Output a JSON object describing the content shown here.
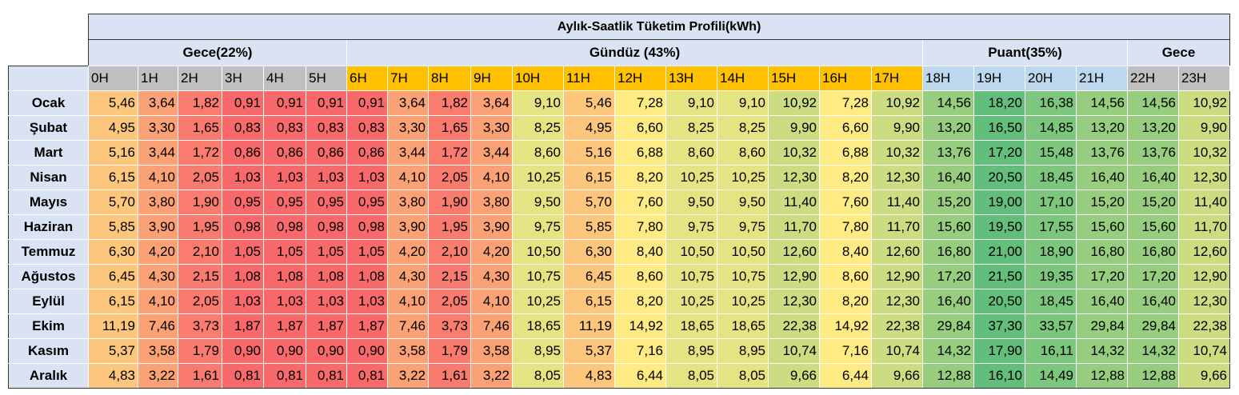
{
  "table": {
    "title": "Aylık-Saatlik Tüketim Profili(kWh)",
    "groups": [
      "Gece(22%)",
      "Gündüz (43%)",
      "Puant(35%)",
      "Gece"
    ],
    "hours": [
      "0H",
      "1H",
      "2H",
      "3H",
      "4H",
      "5H",
      "6H",
      "7H",
      "8H",
      "9H",
      "10H",
      "11H",
      "12H",
      "13H",
      "14H",
      "15H",
      "16H",
      "17H",
      "18H",
      "19H",
      "20H",
      "21H",
      "22H",
      "23H"
    ],
    "rows": [
      {
        "label": "Ocak",
        "values": [
          "5,46",
          "3,64",
          "1,82",
          "0,91",
          "0,91",
          "0,91",
          "0,91",
          "3,64",
          "1,82",
          "3,64",
          "9,10",
          "5,46",
          "7,28",
          "9,10",
          "9,10",
          "10,92",
          "7,28",
          "10,92",
          "14,56",
          "18,20",
          "16,38",
          "14,56",
          "14,56",
          "10,92"
        ]
      },
      {
        "label": "Şubat",
        "values": [
          "4,95",
          "3,30",
          "1,65",
          "0,83",
          "0,83",
          "0,83",
          "0,83",
          "3,30",
          "1,65",
          "3,30",
          "8,25",
          "4,95",
          "6,60",
          "8,25",
          "8,25",
          "9,90",
          "6,60",
          "9,90",
          "13,20",
          "16,50",
          "14,85",
          "13,20",
          "13,20",
          "9,90"
        ]
      },
      {
        "label": "Mart",
        "values": [
          "5,16",
          "3,44",
          "1,72",
          "0,86",
          "0,86",
          "0,86",
          "0,86",
          "3,44",
          "1,72",
          "3,44",
          "8,60",
          "5,16",
          "6,88",
          "8,60",
          "8,60",
          "10,32",
          "6,88",
          "10,32",
          "13,76",
          "17,20",
          "15,48",
          "13,76",
          "13,76",
          "10,32"
        ]
      },
      {
        "label": "Nisan",
        "values": [
          "6,15",
          "4,10",
          "2,05",
          "1,03",
          "1,03",
          "1,03",
          "1,03",
          "4,10",
          "2,05",
          "4,10",
          "10,25",
          "6,15",
          "8,20",
          "10,25",
          "10,25",
          "12,30",
          "8,20",
          "12,30",
          "16,40",
          "20,50",
          "18,45",
          "16,40",
          "16,40",
          "12,30"
        ]
      },
      {
        "label": "Mayıs",
        "values": [
          "5,70",
          "3,80",
          "1,90",
          "0,95",
          "0,95",
          "0,95",
          "0,95",
          "3,80",
          "1,90",
          "3,80",
          "9,50",
          "5,70",
          "7,60",
          "9,50",
          "9,50",
          "11,40",
          "7,60",
          "11,40",
          "15,20",
          "19,00",
          "17,10",
          "15,20",
          "15,20",
          "11,40"
        ]
      },
      {
        "label": "Haziran",
        "values": [
          "5,85",
          "3,90",
          "1,95",
          "0,98",
          "0,98",
          "0,98",
          "0,98",
          "3,90",
          "1,95",
          "3,90",
          "9,75",
          "5,85",
          "7,80",
          "9,75",
          "9,75",
          "11,70",
          "7,80",
          "11,70",
          "15,60",
          "19,50",
          "17,55",
          "15,60",
          "15,60",
          "11,70"
        ]
      },
      {
        "label": "Temmuz",
        "values": [
          "6,30",
          "4,20",
          "2,10",
          "1,05",
          "1,05",
          "1,05",
          "1,05",
          "4,20",
          "2,10",
          "4,20",
          "10,50",
          "6,30",
          "8,40",
          "10,50",
          "10,50",
          "12,60",
          "8,40",
          "12,60",
          "16,80",
          "21,00",
          "18,90",
          "16,80",
          "16,80",
          "12,60"
        ]
      },
      {
        "label": "Ağustos",
        "values": [
          "6,45",
          "4,30",
          "2,15",
          "1,08",
          "1,08",
          "1,08",
          "1,08",
          "4,30",
          "2,15",
          "4,30",
          "10,75",
          "6,45",
          "8,60",
          "10,75",
          "10,75",
          "12,90",
          "8,60",
          "12,90",
          "17,20",
          "21,50",
          "19,35",
          "17,20",
          "17,20",
          "12,90"
        ]
      },
      {
        "label": "Eylül",
        "values": [
          "6,15",
          "4,10",
          "2,05",
          "1,03",
          "1,03",
          "1,03",
          "1,03",
          "4,10",
          "2,05",
          "4,10",
          "10,25",
          "6,15",
          "8,20",
          "10,25",
          "10,25",
          "12,30",
          "8,20",
          "12,30",
          "16,40",
          "20,50",
          "18,45",
          "16,40",
          "16,40",
          "12,30"
        ]
      },
      {
        "label": "Ekim",
        "values": [
          "11,19",
          "7,46",
          "3,73",
          "1,87",
          "1,87",
          "1,87",
          "1,87",
          "7,46",
          "3,73",
          "7,46",
          "18,65",
          "11,19",
          "14,92",
          "18,65",
          "18,65",
          "22,38",
          "14,92",
          "22,38",
          "29,84",
          "37,30",
          "33,57",
          "29,84",
          "29,84",
          "22,38"
        ]
      },
      {
        "label": "Kasım",
        "values": [
          "5,37",
          "3,58",
          "1,79",
          "0,90",
          "0,90",
          "0,90",
          "0,90",
          "3,58",
          "1,79",
          "3,58",
          "8,95",
          "5,37",
          "7,16",
          "8,95",
          "8,95",
          "10,74",
          "7,16",
          "10,74",
          "14,32",
          "17,90",
          "16,11",
          "14,32",
          "14,32",
          "10,74"
        ]
      },
      {
        "label": "Aralık",
        "values": [
          "4,83",
          "3,22",
          "1,61",
          "0,81",
          "0,81",
          "0,81",
          "0,81",
          "3,22",
          "1,61",
          "3,22",
          "8,05",
          "4,83",
          "6,44",
          "8,05",
          "8,05",
          "9,66",
          "6,44",
          "9,66",
          "12,88",
          "16,10",
          "14,49",
          "12,88",
          "12,88",
          "9,66"
        ]
      }
    ]
  }
}
